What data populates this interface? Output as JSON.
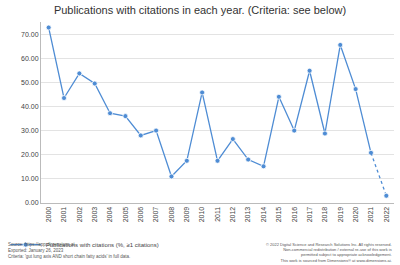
{
  "chart_data": {
    "type": "line",
    "title": "Publications with citations in each year. (Criteria: see below)",
    "x": [
      2000,
      2001,
      2002,
      2003,
      2004,
      2005,
      2006,
      2007,
      2008,
      2009,
      2010,
      2011,
      2012,
      2013,
      2014,
      2015,
      2016,
      2017,
      2018,
      2019,
      2020,
      2021,
      2022
    ],
    "series": [
      {
        "name": "Publications with citations (%, ≥1 citations)",
        "color": "#4e8cd4",
        "values": [
          72.7,
          43.5,
          53.7,
          49.5,
          37.2,
          36.0,
          28.0,
          30.0,
          11.0,
          17.5,
          45.8,
          17.5,
          26.5,
          18.0,
          15.2,
          44.0,
          30.0,
          54.8,
          28.8,
          65.5,
          47.2,
          20.8,
          3.0
        ]
      }
    ],
    "xlim": [
      1999.5,
      2022.5
    ],
    "xticks": [
      2000,
      2001,
      2002,
      2003,
      2004,
      2005,
      2006,
      2007,
      2008,
      2009,
      2010,
      2011,
      2012,
      2013,
      2014,
      2015,
      2016,
      2017,
      2018,
      2019,
      2020,
      2021,
      2022
    ],
    "ylim": [
      0,
      75
    ],
    "yticks": [
      {
        "value": 0,
        "label": "0.00"
      },
      {
        "value": 10,
        "label": "10.00"
      },
      {
        "value": 20,
        "label": "20.00"
      },
      {
        "value": 30,
        "label": "30.00"
      },
      {
        "value": 40,
        "label": "40.00"
      },
      {
        "value": 50,
        "label": "50.00"
      },
      {
        "value": 60,
        "label": "60.00"
      },
      {
        "value": 70,
        "label": "70.00"
      }
    ],
    "grid": true,
    "legend": "bottom left",
    "marker": "circle",
    "footer_left": [
      "Source: https://app.dimensions.ai",
      "Exported: January 26, 2023",
      "Criteria: 'gut lung axis AND short chain fatty acids' in full data."
    ],
    "footer_right": [
      "© 2022 Digital Science and Research Solutions Inc. All rights reserved.",
      "Non-commercial redistribution / external re-use of this work is",
      "permitted subject to appropriate acknowledgement.",
      "This work is sourced from Dimensions® at www.dimensions.ai."
    ]
  }
}
